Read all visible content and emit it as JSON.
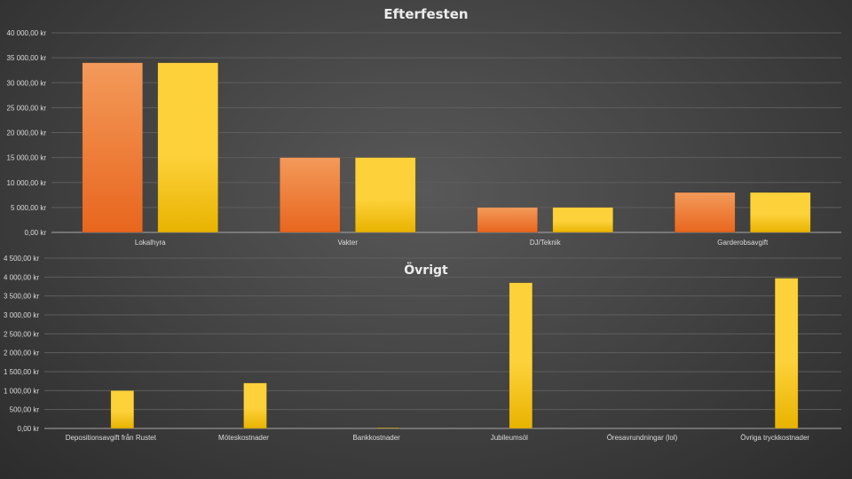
{
  "colors": {
    "series_a_top": "#f39a5a",
    "series_a_bottom": "#e8661e",
    "series_b_top": "#fdd13a",
    "series_b_bottom": "#e8b300",
    "text": "#dcdcdc",
    "title": "#ececec",
    "grid": "#5e5e5e"
  },
  "chart_data": [
    {
      "type": "bar",
      "title": "Efterfesten",
      "categories": [
        "Lokalhyra",
        "Vakter",
        "DJ/Teknik",
        "Garderobsavgift"
      ],
      "series": [
        {
          "values": [
            34000,
            15000,
            5000,
            8000
          ]
        },
        {
          "values": [
            34000,
            15000,
            5000,
            8000
          ]
        }
      ],
      "ylim": [
        0,
        40000
      ],
      "yticks": [
        "0,00 kr",
        "5 000,00 kr",
        "10 000,00 kr",
        "15 000,00 kr",
        "20 000,00 kr",
        "25 000,00 kr",
        "30 000,00 kr",
        "35 000,00 kr",
        "40 000,00 kr"
      ],
      "grid": true,
      "legend": "none"
    },
    {
      "type": "bar",
      "title": "Övrigt",
      "categories": [
        "Depositionsavgift från Rustet",
        "Möteskostnader",
        "Bankkostnader",
        "Jubileumsöl",
        "Öresavrundningar (lol)",
        "Övriga tryckkostnader"
      ],
      "series": [
        {
          "values": [
            0,
            0,
            0,
            0,
            0,
            0
          ]
        },
        {
          "values": [
            1000,
            1200,
            10,
            3850,
            0,
            3970
          ]
        }
      ],
      "ylim": [
        0,
        4500
      ],
      "yticks": [
        "0,00 kr",
        "500,00 kr",
        "1 000,00 kr",
        "1 500,00 kr",
        "2 000,00 kr",
        "2 500,00 kr",
        "3 000,00 kr",
        "3 500,00 kr",
        "4 000,00 kr",
        "4 500,00 kr"
      ],
      "grid": true,
      "legend": "none"
    }
  ]
}
